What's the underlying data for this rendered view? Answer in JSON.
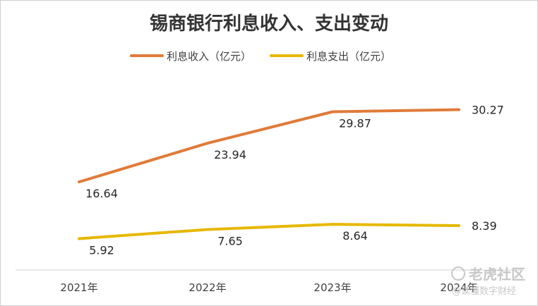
{
  "chart_data": {
    "type": "line",
    "title": "锡商银行利息收入、支出变动",
    "categories": [
      "2021年",
      "2022年",
      "2023年",
      "2024年"
    ],
    "series": [
      {
        "name": "利息收入（亿元）",
        "values": [
          16.64,
          23.94,
          29.87,
          30.27
        ],
        "value_labels": [
          "16.64",
          "23.94",
          "29.87",
          "30.27"
        ],
        "color": "#e07b39"
      },
      {
        "name": "利息支出（亿元）",
        "values": [
          5.92,
          7.65,
          8.64,
          8.39
        ],
        "value_labels": [
          "5.92",
          "7.65",
          "8.64",
          "8.39"
        ],
        "color": "#e6b800"
      }
    ],
    "ylim": [
      0,
      35
    ],
    "grid": false,
    "legend": "top-center"
  },
  "watermark": {
    "main": "老虎社区",
    "sub": "@读懂数字财经"
  }
}
